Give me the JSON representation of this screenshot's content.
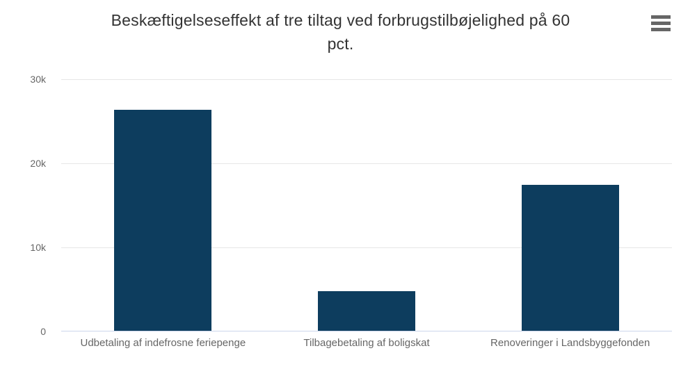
{
  "header": {
    "title_lines": [
      "Beskæftigelseseffekt af tre tiltag ved forbrugstilbøjelighed på 60",
      "pct."
    ]
  },
  "menu": {
    "icon": "hamburger-menu-icon"
  },
  "colors": {
    "bar": "#0d3d5e",
    "title_text": "#333333",
    "axis_label_text": "#666666",
    "gridline": "#e6e6e6",
    "x_axis_line": "#ccd6eb",
    "menu_icon": "#666666",
    "background": "#ffffff"
  },
  "chart_data": {
    "type": "bar",
    "title": "Beskæftigelseseffekt af tre tiltag ved forbrugstilbøjelighed på 60 pct.",
    "categories": [
      "Udbetaling af indefrosne feriepenge",
      "Tilbagebetaling af boligskat",
      "Renoveringer i Landsbyggefonden"
    ],
    "values": [
      26400,
      4800,
      17400
    ],
    "xlabel": "",
    "ylabel": "",
    "ylim": [
      0,
      30000
    ],
    "yticks": [
      {
        "value": 0,
        "label": "0"
      },
      {
        "value": 10000,
        "label": "10k"
      },
      {
        "value": 20000,
        "label": "20k"
      },
      {
        "value": 30000,
        "label": "30k"
      }
    ],
    "grid": true,
    "legend": false
  }
}
